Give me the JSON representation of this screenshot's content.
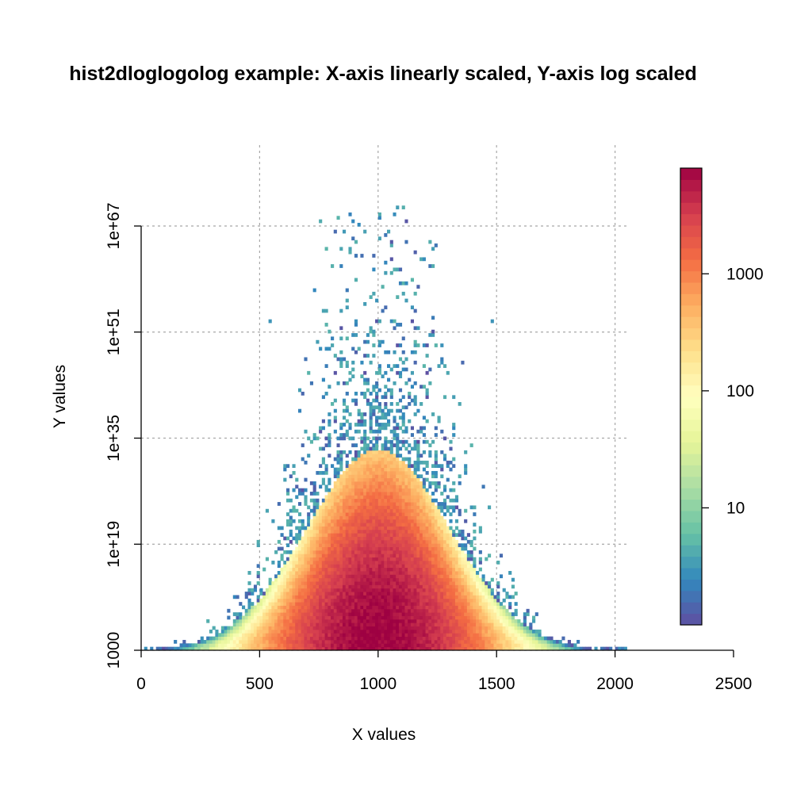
{
  "chart_data": {
    "type": "heatmap",
    "title": "hist2dloglogolog example: X-axis linearly scaled, Y-axis log scaled",
    "xlabel": "X values",
    "ylabel": "Y values",
    "x_ticks": [
      0,
      500,
      1000,
      1500,
      2000,
      2500
    ],
    "x_tick_labels": [
      "0",
      "500",
      "1000",
      "1500",
      "2000",
      "2500"
    ],
    "xlim": [
      0,
      2500
    ],
    "y_scale": "log10",
    "y_ticks_log10": [
      3,
      19,
      35,
      51,
      67
    ],
    "y_tick_labels": [
      "1000",
      "1e+19",
      "1e+35",
      "1e+51",
      "1e+67"
    ],
    "ylim_log10": [
      3,
      67
    ],
    "x_grid": [
      500,
      1000,
      1500,
      2000
    ],
    "y_grid_log10": [
      3,
      19,
      35,
      51,
      67
    ],
    "grid": true,
    "colorbar": {
      "position": "right",
      "scale": "log10",
      "range": [
        1,
        8000
      ],
      "tick_values": [
        10,
        100,
        1000
      ],
      "tick_labels": [
        "10",
        "100",
        "1000"
      ],
      "palette": [
        "#5e4fa2",
        "#3288bd",
        "#66c2a5",
        "#abdda4",
        "#e6f598",
        "#ffffbf",
        "#fee08b",
        "#fdae61",
        "#f46d43",
        "#d53e4f",
        "#9e0142"
      ]
    },
    "density_model": {
      "x_center": 1000,
      "x_sd": 300,
      "y_baseline_log10": 3,
      "y_exponent_scale_log10": 30,
      "peak_count": 8000
    }
  }
}
